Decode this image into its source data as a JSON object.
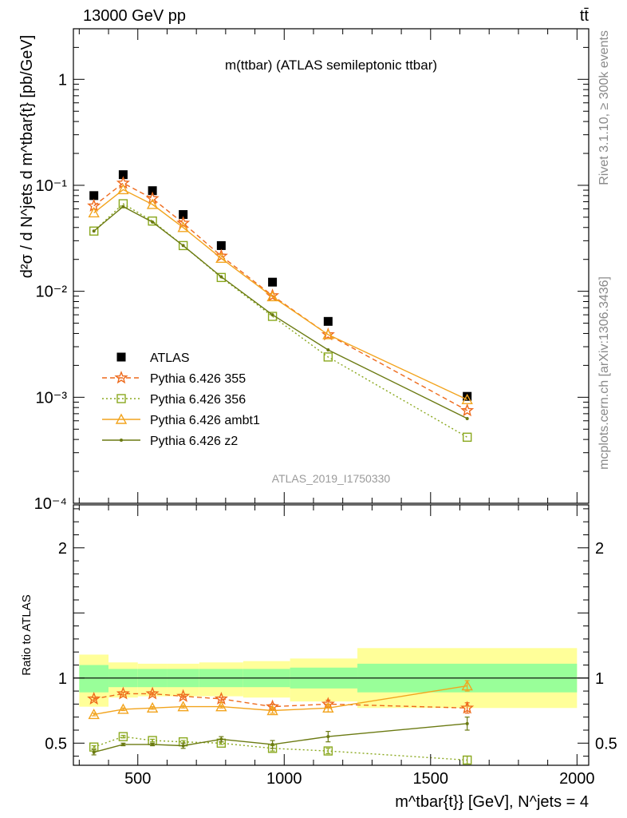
{
  "header": {
    "energy_label": "13000 GeV pp",
    "process_label": "tt̄"
  },
  "side": {
    "rivet_label": "Rivet 3.1.10, ≥ 300k events",
    "mcplots_label": "mcplots.cern.ch [arXiv:1306.3436]"
  },
  "colors": {
    "atlas": "#000000",
    "p355": "#ee6a1c",
    "p356": "#8aa81e",
    "ambt1": "#f2a41e",
    "z2": "#6b7a12",
    "band_outer": "#ffff99",
    "band_inner": "#99ff99"
  },
  "chart_data": [
    {
      "type": "scatter",
      "panel": "main",
      "title": "m(ttbar) (ATLAS semileptonic ttbar)",
      "analysis_id": "ATLAS_2019_I1750330",
      "ylabel": "d²σ / d N^jets d m^tbar{t} [pb/GeV]",
      "yscale": "log",
      "ylim": [
        0.0001,
        3.0
      ],
      "xlim": [
        280,
        2040
      ],
      "y_tick_labels": [
        "1",
        "10⁻¹",
        "10⁻²",
        "10⁻³",
        "10⁻⁴"
      ],
      "legend_position": "left",
      "series": [
        {
          "name": "ATLAS",
          "style": "data",
          "x": [
            350,
            450,
            550,
            655,
            785,
            960,
            1150,
            1625
          ],
          "y": [
            0.08,
            0.126,
            0.089,
            0.053,
            0.027,
            0.0122,
            0.0052,
            0.00102
          ]
        },
        {
          "name": "Pythia 6.426 355",
          "style": "dashed-star",
          "x": [
            350,
            450,
            550,
            655,
            785,
            960,
            1150,
            1625
          ],
          "y": [
            0.064,
            0.105,
            0.075,
            0.044,
            0.0215,
            0.0091,
            0.0039,
            0.00075
          ]
        },
        {
          "name": "Pythia 6.426 356",
          "style": "dotted-square",
          "x": [
            350,
            450,
            550,
            655,
            785,
            960,
            1150,
            1625
          ],
          "y": [
            0.037,
            0.067,
            0.046,
            0.027,
            0.0135,
            0.0058,
            0.0024,
            0.00042
          ]
        },
        {
          "name": "Pythia 6.426 ambt1",
          "style": "solid-triangle",
          "x": [
            350,
            450,
            550,
            655,
            785,
            960,
            1150,
            1625
          ],
          "y": [
            0.055,
            0.091,
            0.066,
            0.04,
            0.0205,
            0.0089,
            0.0039,
            0.00095
          ]
        },
        {
          "name": "Pythia 6.426 z2",
          "style": "solid-dot",
          "x": [
            350,
            450,
            550,
            655,
            785,
            960,
            1150,
            1625
          ],
          "y": [
            0.037,
            0.063,
            0.045,
            0.027,
            0.0137,
            0.006,
            0.0028,
            0.00063
          ]
        }
      ]
    },
    {
      "type": "line",
      "panel": "ratio",
      "ylabel": "Ratio to ATLAS",
      "xlabel": "m^tbar{t}} [GeV], N^jets = 4",
      "xlim": [
        280,
        2040
      ],
      "ylim": [
        0.33,
        2.33
      ],
      "x_ticks": [
        500,
        1000,
        1500,
        2000
      ],
      "y_ticks": [
        0.5,
        1,
        2
      ],
      "bins": [
        {
          "lo": 300,
          "hi": 400,
          "in_lo": 0.89,
          "in_hi": 1.1,
          "out_lo": 0.78,
          "out_hi": 1.18
        },
        {
          "lo": 400,
          "hi": 500,
          "in_lo": 0.93,
          "in_hi": 1.07,
          "out_lo": 0.85,
          "out_hi": 1.12
        },
        {
          "lo": 500,
          "hi": 600,
          "in_lo": 0.93,
          "in_hi": 1.07,
          "out_lo": 0.86,
          "out_hi": 1.11
        },
        {
          "lo": 600,
          "hi": 710,
          "in_lo": 0.93,
          "in_hi": 1.07,
          "out_lo": 0.86,
          "out_hi": 1.11
        },
        {
          "lo": 710,
          "hi": 860,
          "in_lo": 0.93,
          "in_hi": 1.07,
          "out_lo": 0.86,
          "out_hi": 1.12
        },
        {
          "lo": 860,
          "hi": 1020,
          "in_lo": 0.93,
          "in_hi": 1.07,
          "out_lo": 0.85,
          "out_hi": 1.13
        },
        {
          "lo": 1020,
          "hi": 1250,
          "in_lo": 0.92,
          "in_hi": 1.08,
          "out_lo": 0.82,
          "out_hi": 1.15
        },
        {
          "lo": 1250,
          "hi": 2000,
          "in_lo": 0.89,
          "in_hi": 1.11,
          "out_lo": 0.77,
          "out_hi": 1.23
        }
      ],
      "series": [
        {
          "name": "Pythia 6.426 355",
          "style": "dashed-star",
          "x": [
            350,
            450,
            550,
            655,
            785,
            960,
            1150,
            1625
          ],
          "y": [
            0.84,
            0.88,
            0.88,
            0.86,
            0.84,
            0.78,
            0.8,
            0.77
          ],
          "err": [
            0.01,
            0.01,
            0.01,
            0.01,
            0.01,
            0.02,
            0.03,
            0.04
          ]
        },
        {
          "name": "Pythia 6.426 356",
          "style": "dotted-square",
          "x": [
            350,
            450,
            550,
            655,
            785,
            960,
            1150,
            1625
          ],
          "y": [
            0.47,
            0.55,
            0.52,
            0.51,
            0.5,
            0.46,
            0.44,
            0.37
          ],
          "err": [
            0.01,
            0.01,
            0.01,
            0.01,
            0.01,
            0.02,
            0.02,
            0.03
          ]
        },
        {
          "name": "Pythia 6.426 ambt1",
          "style": "solid-triangle",
          "x": [
            350,
            450,
            550,
            655,
            785,
            960,
            1150,
            1625
          ],
          "y": [
            0.72,
            0.76,
            0.77,
            0.78,
            0.78,
            0.75,
            0.77,
            0.94
          ],
          "err": [
            0.01,
            0.01,
            0.01,
            0.01,
            0.01,
            0.02,
            0.03,
            0.04
          ]
        },
        {
          "name": "Pythia 6.426 z2",
          "style": "solid-dot",
          "x": [
            350,
            450,
            550,
            655,
            785,
            960,
            1150,
            1625
          ],
          "y": [
            0.43,
            0.49,
            0.49,
            0.48,
            0.53,
            0.49,
            0.55,
            0.65
          ],
          "err": [
            0.02,
            0.01,
            0.01,
            0.02,
            0.02,
            0.03,
            0.04,
            0.05
          ]
        }
      ]
    }
  ]
}
